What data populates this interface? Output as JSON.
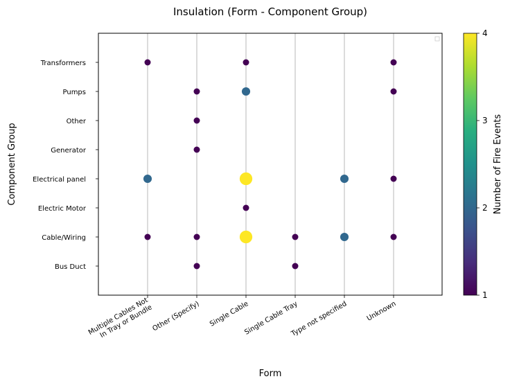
{
  "chart_data": {
    "type": "scatter",
    "title": "Insulation (Form - Component Group)",
    "xlabel": "Form",
    "ylabel": "Component Group",
    "x_categories": [
      "Multiple Cables Not\nIn Tray or Bundle",
      "Other (Specify)",
      "Single Cable",
      "Single Cable Tray",
      "Type not specified",
      "Unknown"
    ],
    "y_categories": [
      "Bus Duct",
      "Cable/Wiring",
      "Electric Motor",
      "Electrical panel",
      "Generator",
      "Other",
      "Pumps",
      "Transformers"
    ],
    "points": [
      {
        "x": "Multiple Cables Not\nIn Tray or Bundle",
        "y": "Transformers",
        "value": 1
      },
      {
        "x": "Single Cable",
        "y": "Transformers",
        "value": 1
      },
      {
        "x": "Unknown",
        "y": "Transformers",
        "value": 1
      },
      {
        "x": "Other (Specify)",
        "y": "Pumps",
        "value": 1
      },
      {
        "x": "Single Cable",
        "y": "Pumps",
        "value": 2
      },
      {
        "x": "Unknown",
        "y": "Pumps",
        "value": 1
      },
      {
        "x": "Other (Specify)",
        "y": "Other",
        "value": 1
      },
      {
        "x": "Other (Specify)",
        "y": "Generator",
        "value": 1
      },
      {
        "x": "Multiple Cables Not\nIn Tray or Bundle",
        "y": "Electrical panel",
        "value": 2
      },
      {
        "x": "Single Cable",
        "y": "Electrical panel",
        "value": 4
      },
      {
        "x": "Type not specified",
        "y": "Electrical panel",
        "value": 2
      },
      {
        "x": "Unknown",
        "y": "Electrical panel",
        "value": 1
      },
      {
        "x": "Single Cable",
        "y": "Electric Motor",
        "value": 1
      },
      {
        "x": "Multiple Cables Not\nIn Tray or Bundle",
        "y": "Cable/Wiring",
        "value": 1
      },
      {
        "x": "Other (Specify)",
        "y": "Cable/Wiring",
        "value": 1
      },
      {
        "x": "Single Cable",
        "y": "Cable/Wiring",
        "value": 4
      },
      {
        "x": "Single Cable Tray",
        "y": "Cable/Wiring",
        "value": 1
      },
      {
        "x": "Type not specified",
        "y": "Cable/Wiring",
        "value": 2
      },
      {
        "x": "Unknown",
        "y": "Cable/Wiring",
        "value": 1
      },
      {
        "x": "Other (Specify)",
        "y": "Bus Duct",
        "value": 1
      },
      {
        "x": "Single Cable Tray",
        "y": "Bus Duct",
        "value": 1
      }
    ],
    "colorbar": {
      "label": "Number of Fire Events",
      "colormap": "viridis",
      "range": [
        1,
        4
      ],
      "ticks": [
        1,
        2,
        3,
        4
      ]
    },
    "grid": "vertical",
    "legend": "top-right (empty)",
    "colors": {
      "v1": "#440154",
      "v2": "#31688e",
      "v4": "#fde725"
    }
  }
}
